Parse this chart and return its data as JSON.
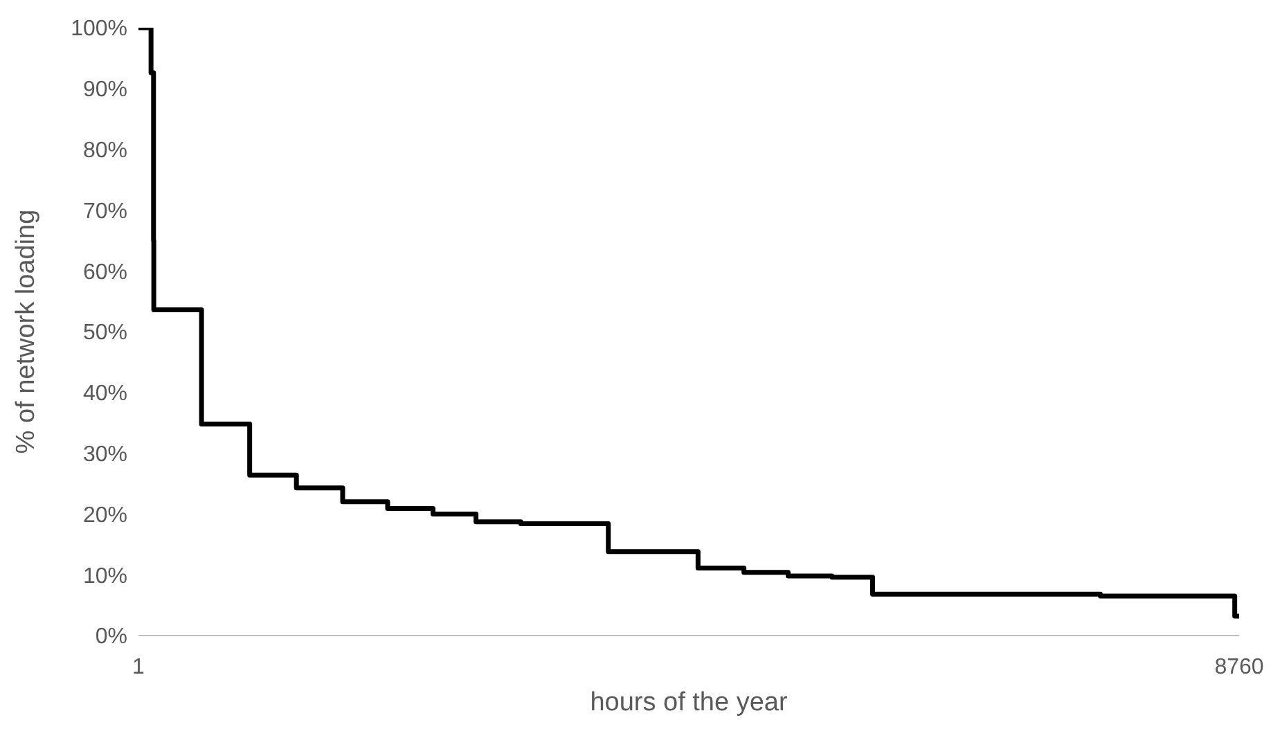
{
  "chart_data": {
    "type": "step",
    "xlabel": "hours of the year",
    "ylabel": "%  of network loading",
    "x": [
      1,
      101,
      121,
      123,
      503,
      886,
      1258,
      1626,
      1984,
      2345,
      2687,
      3044,
      3740,
      4454,
      4819,
      5171,
      5520,
      5843,
      7656,
      8725,
      8760
    ],
    "series": [
      {
        "color": "#000000",
        "values": [
          100,
          92.6,
          65,
          53.6,
          34.8,
          26.4,
          24.3,
          22,
          20.9,
          20,
          18.7,
          18.4,
          13.8,
          11.1,
          10.4,
          9.8,
          9.6,
          6.8,
          6.5,
          3.2,
          3.2
        ]
      }
    ],
    "xlim": [
      1,
      8760
    ],
    "xticks": [
      1,
      8760
    ],
    "ylim": [
      0,
      100
    ],
    "yticks": [
      {
        "value": 0,
        "label": "0%"
      },
      {
        "value": 10,
        "label": "10%"
      },
      {
        "value": 20,
        "label": "20%"
      },
      {
        "value": 30,
        "label": "30%"
      },
      {
        "value": 40,
        "label": "40%"
      },
      {
        "value": 50,
        "label": "50%"
      },
      {
        "value": 60,
        "label": "60%"
      },
      {
        "value": 70,
        "label": "70%"
      },
      {
        "value": 80,
        "label": "80%"
      },
      {
        "value": 90,
        "label": "90%"
      },
      {
        "value": 100,
        "label": "100%"
      }
    ],
    "grid": false,
    "legend": false,
    "marker": "none",
    "line_style": "solid"
  }
}
